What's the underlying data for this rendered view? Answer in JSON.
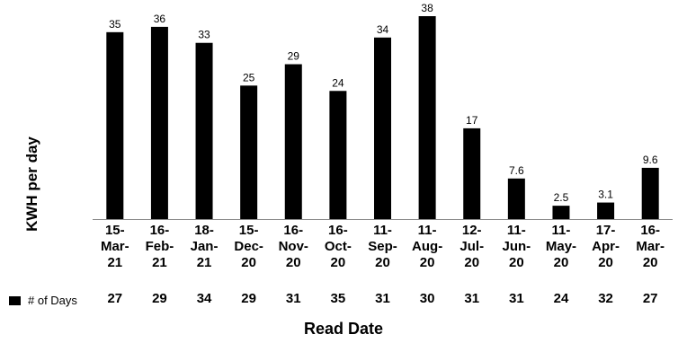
{
  "chart_data": {
    "type": "bar",
    "categories": [
      "15-Mar-21",
      "16-Feb-21",
      "18-Jan-21",
      "15-Dec-20",
      "16-Nov-20",
      "16-Oct-20",
      "11-Sep-20",
      "11-Aug-20",
      "12-Jul-20",
      "11-Jun-20",
      "11-May-20",
      "17-Apr-20",
      "16-Mar-20"
    ],
    "category_lines": [
      [
        "15-",
        "Mar-",
        "21"
      ],
      [
        "16-",
        "Feb-",
        "21"
      ],
      [
        "18-",
        "Jan-",
        "21"
      ],
      [
        "15-",
        "Dec-",
        "20"
      ],
      [
        "16-",
        "Nov-",
        "20"
      ],
      [
        "16-",
        "Oct-",
        "20"
      ],
      [
        "11-",
        "Sep-",
        "20"
      ],
      [
        "11-",
        "Aug-",
        "20"
      ],
      [
        "12-",
        "Jul-",
        "20"
      ],
      [
        "11-",
        "Jun-",
        "20"
      ],
      [
        "11-",
        "May-",
        "20"
      ],
      [
        "17-",
        "Apr-",
        "20"
      ],
      [
        "16-",
        "Mar-",
        "20"
      ]
    ],
    "values": [
      35,
      36,
      33,
      25,
      29,
      24,
      34,
      38,
      17,
      7.6,
      2.5,
      3.1,
      9.6
    ],
    "data_labels": [
      "35",
      "36",
      "33",
      "25",
      "29",
      "24",
      "34",
      "38",
      "17",
      "7.6",
      "2.5",
      "3.1",
      "9.6"
    ],
    "xlabel": "Read Date",
    "ylabel": "KWH per day",
    "ylim": [
      0,
      38
    ],
    "grid": false,
    "bar_color": "#000000",
    "table": {
      "label": "# of Days",
      "values": [
        "27",
        "29",
        "34",
        "29",
        "31",
        "35",
        "31",
        "30",
        "31",
        "31",
        "24",
        "32",
        "27"
      ]
    }
  }
}
